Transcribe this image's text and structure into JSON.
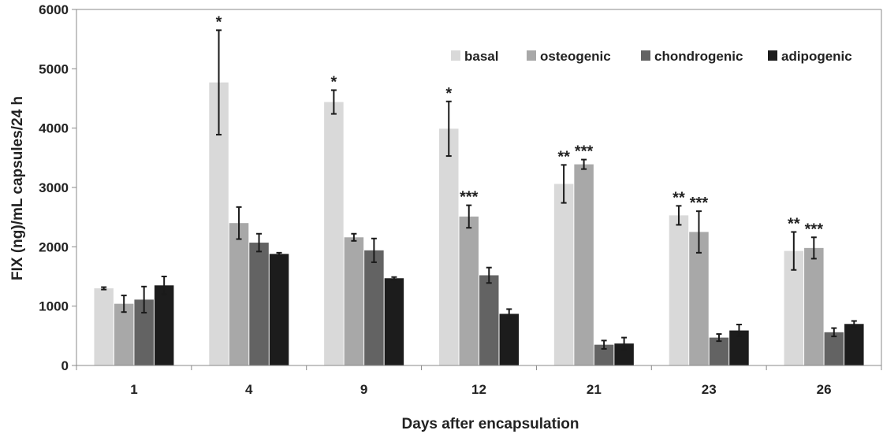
{
  "chart_data": {
    "type": "bar",
    "title": "",
    "xlabel": "Days after encapsulation",
    "ylabel": "FIX (ng)/mL capsules/24 h",
    "ylim": [
      0,
      6000
    ],
    "yticks": [
      0,
      1000,
      2000,
      3000,
      4000,
      5000,
      6000
    ],
    "grid": false,
    "legend_position": "top-right",
    "categories": [
      "1",
      "4",
      "9",
      "12",
      "21",
      "23",
      "26"
    ],
    "series": [
      {
        "name": "basal",
        "color": "#d9d9d9",
        "values": [
          1300,
          4770,
          4440,
          3990,
          3060,
          2530,
          1930
        ],
        "errors": [
          20,
          880,
          200,
          460,
          320,
          160,
          320
        ],
        "annotations": [
          "",
          "*",
          "*",
          "*",
          "**",
          "**",
          "**"
        ]
      },
      {
        "name": "osteogenic",
        "color": "#a8a8a8",
        "values": [
          1040,
          2400,
          2160,
          2510,
          3390,
          2250,
          1980
        ],
        "errors": [
          140,
          270,
          60,
          190,
          80,
          350,
          180
        ],
        "annotations": [
          "",
          "",
          "",
          "***",
          "***",
          "***",
          "***"
        ]
      },
      {
        "name": "chondrogenic",
        "color": "#636363",
        "values": [
          1110,
          2070,
          1940,
          1520,
          350,
          470,
          560
        ],
        "errors": [
          220,
          150,
          200,
          130,
          70,
          60,
          70
        ],
        "annotations": [
          "",
          "",
          "",
          "",
          "",
          "",
          ""
        ]
      },
      {
        "name": "adipogenic",
        "color": "#1c1c1c",
        "values": [
          1350,
          1880,
          1470,
          870,
          370,
          590,
          700
        ],
        "errors": [
          150,
          20,
          20,
          80,
          100,
          100,
          50
        ],
        "annotations": [
          "",
          "",
          "",
          "",
          "",
          "",
          ""
        ]
      }
    ]
  }
}
